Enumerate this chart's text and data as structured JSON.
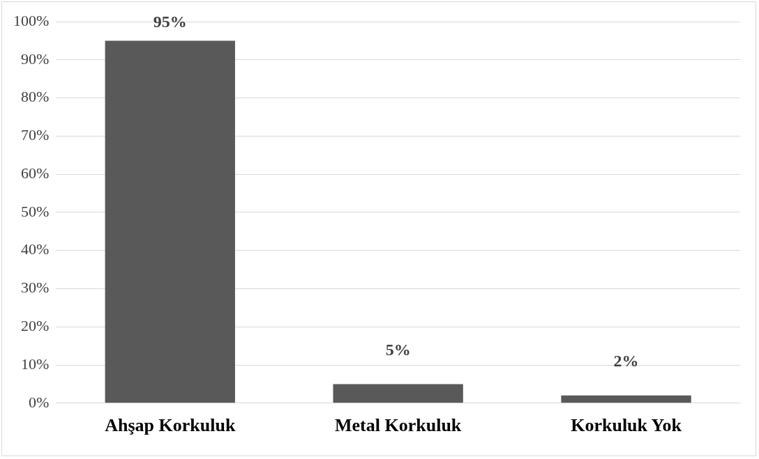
{
  "chart_data": {
    "type": "bar",
    "categories": [
      "Ahşap Korkuluk",
      "Metal Korkuluk",
      "Korkuluk Yok"
    ],
    "values": [
      95,
      5,
      2
    ],
    "color": "#595959",
    "value_labels": [
      "95%",
      "5%",
      "2%"
    ],
    "ylim": [
      0,
      100
    ],
    "yticks": [
      {
        "value": 0,
        "label": "0%"
      },
      {
        "value": 10,
        "label": "10%"
      },
      {
        "value": 20,
        "label": "20%"
      },
      {
        "value": 30,
        "label": "30%"
      },
      {
        "value": 40,
        "label": "40%"
      },
      {
        "value": 50,
        "label": "50%"
      },
      {
        "value": 60,
        "label": "60%"
      },
      {
        "value": 70,
        "label": "70%"
      },
      {
        "value": 80,
        "label": "80%"
      },
      {
        "value": 90,
        "label": "90%"
      },
      {
        "value": 100,
        "label": "100%"
      }
    ],
    "grid": "y",
    "legend": false
  }
}
